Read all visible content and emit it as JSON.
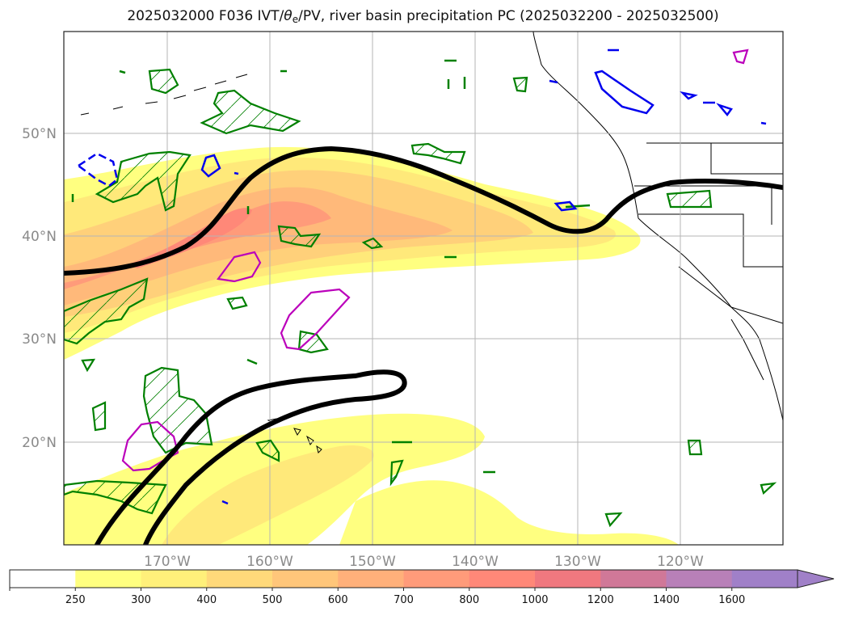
{
  "title": {
    "prefix": "2025032000 F036 IVT/",
    "theta": "θ",
    "sub": "e",
    "suffix": "/PV, river basin precipitation PC (2025032200 - 2025032500)"
  },
  "map": {
    "region": "North Pacific / US West Coast",
    "lon_range": [
      -180,
      -110
    ],
    "lat_range": [
      10,
      60
    ],
    "lon_ticks": [
      "170°W",
      "160°W",
      "150°W",
      "140°W",
      "130°W",
      "120°W"
    ],
    "lat_ticks": [
      "50°N",
      "40°N",
      "30°N",
      "20°N"
    ],
    "gridlines": true
  },
  "colorbar": {
    "labels": [
      "250",
      "300",
      "400",
      "500",
      "600",
      "700",
      "800",
      "1000",
      "1200",
      "1400",
      "1600"
    ],
    "colors": [
      "#ffffff",
      "#ffff80",
      "#fff07a",
      "#ffd97a",
      "#ffc67a",
      "#ffb07a",
      "#ff9b7a",
      "#ff8878",
      "#f0787f",
      "#d07898",
      "#b880b8",
      "#a080c8"
    ],
    "extend": "max"
  },
  "legend_colors": {
    "pv_contour": "#000000",
    "precip_green": "#008000",
    "precip_blue": "#0000ee",
    "precip_magenta": "#bb00bb"
  }
}
